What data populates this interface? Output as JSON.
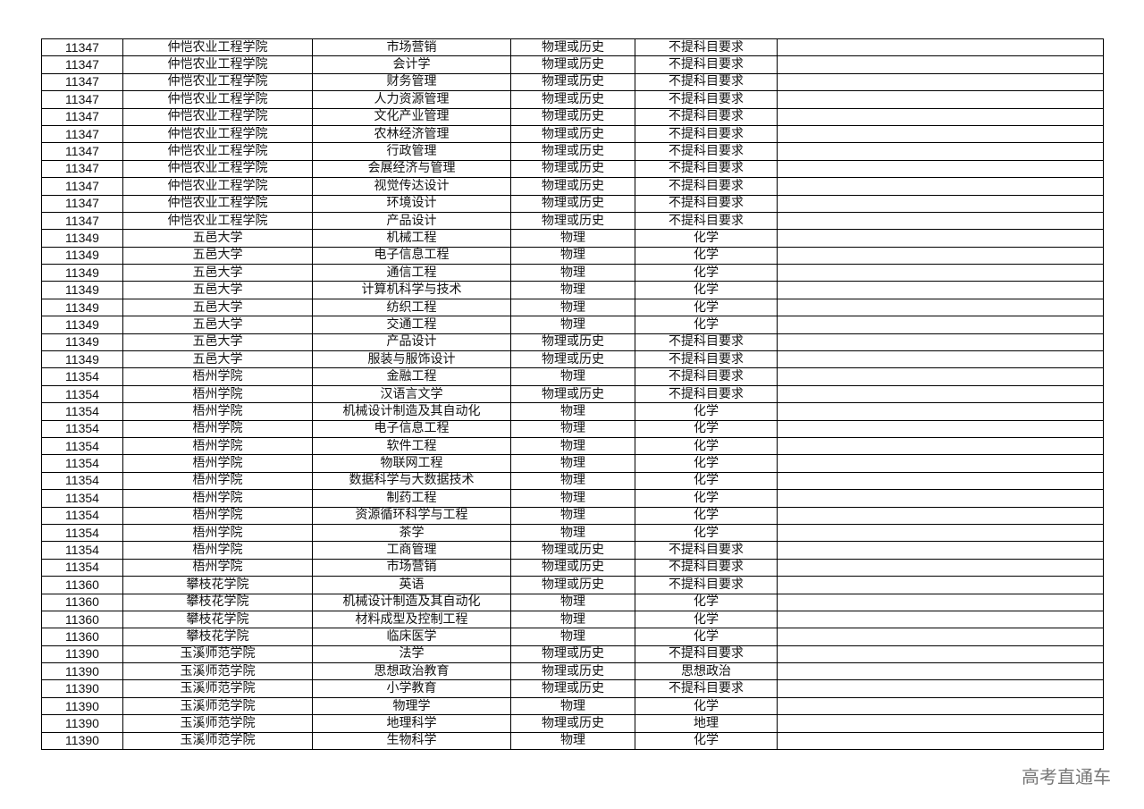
{
  "rows": [
    [
      "11347",
      "仲恺农业工程学院",
      "市场营销",
      "物理或历史",
      "不提科目要求",
      ""
    ],
    [
      "11347",
      "仲恺农业工程学院",
      "会计学",
      "物理或历史",
      "不提科目要求",
      ""
    ],
    [
      "11347",
      "仲恺农业工程学院",
      "财务管理",
      "物理或历史",
      "不提科目要求",
      ""
    ],
    [
      "11347",
      "仲恺农业工程学院",
      "人力资源管理",
      "物理或历史",
      "不提科目要求",
      ""
    ],
    [
      "11347",
      "仲恺农业工程学院",
      "文化产业管理",
      "物理或历史",
      "不提科目要求",
      ""
    ],
    [
      "11347",
      "仲恺农业工程学院",
      "农林经济管理",
      "物理或历史",
      "不提科目要求",
      ""
    ],
    [
      "11347",
      "仲恺农业工程学院",
      "行政管理",
      "物理或历史",
      "不提科目要求",
      ""
    ],
    [
      "11347",
      "仲恺农业工程学院",
      "会展经济与管理",
      "物理或历史",
      "不提科目要求",
      ""
    ],
    [
      "11347",
      "仲恺农业工程学院",
      "视觉传达设计",
      "物理或历史",
      "不提科目要求",
      ""
    ],
    [
      "11347",
      "仲恺农业工程学院",
      "环境设计",
      "物理或历史",
      "不提科目要求",
      ""
    ],
    [
      "11347",
      "仲恺农业工程学院",
      "产品设计",
      "物理或历史",
      "不提科目要求",
      ""
    ],
    [
      "11349",
      "五邑大学",
      "机械工程",
      "物理",
      "化学",
      ""
    ],
    [
      "11349",
      "五邑大学",
      "电子信息工程",
      "物理",
      "化学",
      ""
    ],
    [
      "11349",
      "五邑大学",
      "通信工程",
      "物理",
      "化学",
      ""
    ],
    [
      "11349",
      "五邑大学",
      "计算机科学与技术",
      "物理",
      "化学",
      ""
    ],
    [
      "11349",
      "五邑大学",
      "纺织工程",
      "物理",
      "化学",
      ""
    ],
    [
      "11349",
      "五邑大学",
      "交通工程",
      "物理",
      "化学",
      ""
    ],
    [
      "11349",
      "五邑大学",
      "产品设计",
      "物理或历史",
      "不提科目要求",
      ""
    ],
    [
      "11349",
      "五邑大学",
      "服装与服饰设计",
      "物理或历史",
      "不提科目要求",
      ""
    ],
    [
      "11354",
      "梧州学院",
      "金融工程",
      "物理",
      "不提科目要求",
      ""
    ],
    [
      "11354",
      "梧州学院",
      "汉语言文学",
      "物理或历史",
      "不提科目要求",
      ""
    ],
    [
      "11354",
      "梧州学院",
      "机械设计制造及其自动化",
      "物理",
      "化学",
      ""
    ],
    [
      "11354",
      "梧州学院",
      "电子信息工程",
      "物理",
      "化学",
      ""
    ],
    [
      "11354",
      "梧州学院",
      "软件工程",
      "物理",
      "化学",
      ""
    ],
    [
      "11354",
      "梧州学院",
      "物联网工程",
      "物理",
      "化学",
      ""
    ],
    [
      "11354",
      "梧州学院",
      "数据科学与大数据技术",
      "物理",
      "化学",
      ""
    ],
    [
      "11354",
      "梧州学院",
      "制药工程",
      "物理",
      "化学",
      ""
    ],
    [
      "11354",
      "梧州学院",
      "资源循环科学与工程",
      "物理",
      "化学",
      ""
    ],
    [
      "11354",
      "梧州学院",
      "茶学",
      "物理",
      "化学",
      ""
    ],
    [
      "11354",
      "梧州学院",
      "工商管理",
      "物理或历史",
      "不提科目要求",
      ""
    ],
    [
      "11354",
      "梧州学院",
      "市场营销",
      "物理或历史",
      "不提科目要求",
      ""
    ],
    [
      "11360",
      "攀枝花学院",
      "英语",
      "物理或历史",
      "不提科目要求",
      ""
    ],
    [
      "11360",
      "攀枝花学院",
      "机械设计制造及其自动化",
      "物理",
      "化学",
      ""
    ],
    [
      "11360",
      "攀枝花学院",
      "材料成型及控制工程",
      "物理",
      "化学",
      ""
    ],
    [
      "11360",
      "攀枝花学院",
      "临床医学",
      "物理",
      "化学",
      ""
    ],
    [
      "11390",
      "玉溪师范学院",
      "法学",
      "物理或历史",
      "不提科目要求",
      ""
    ],
    [
      "11390",
      "玉溪师范学院",
      "思想政治教育",
      "物理或历史",
      "思想政治",
      ""
    ],
    [
      "11390",
      "玉溪师范学院",
      "小学教育",
      "物理或历史",
      "不提科目要求",
      ""
    ],
    [
      "11390",
      "玉溪师范学院",
      "物理学",
      "物理",
      "化学",
      ""
    ],
    [
      "11390",
      "玉溪师范学院",
      "地理科学",
      "物理或历史",
      "地理",
      ""
    ],
    [
      "11390",
      "玉溪师范学院",
      "生物科学",
      "物理",
      "化学",
      ""
    ]
  ],
  "watermark": "高考直通车"
}
